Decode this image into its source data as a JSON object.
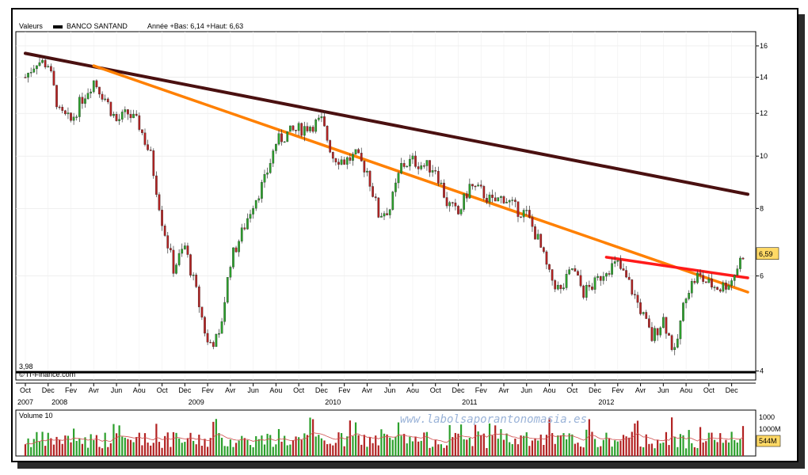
{
  "header": {
    "prefix": "Valeurs",
    "series_name": "BANCO SANTAND",
    "range_text": "Année +Bas: 6,14 +Haut: 6,63"
  },
  "price_axis": {
    "ticks": [
      4,
      6,
      8,
      10,
      12,
      14,
      16
    ],
    "last_price_label": "6,59",
    "min_label": "3,98"
  },
  "credit": "© IT-Finance.com",
  "watermark": "www.labolsaporantonomasia.es",
  "volume": {
    "title": "Volume 10",
    "tick_1000": "1000M",
    "tick_1000_short": "1000",
    "last_volume_label": "544M"
  },
  "colors": {
    "up": "#2ca02c",
    "down": "#b22222",
    "long_trend": "#4a1010",
    "mid_trend": "#ff8000",
    "short_trend": "#ff1a1a",
    "support": "#000000",
    "volume_avg": "#d05050",
    "label_box": "#ffd966"
  },
  "chart_data": {
    "type": "candlestick",
    "title": "BANCO SANTAND",
    "y_scale": "log",
    "ylim": [
      3.85,
      17.0
    ],
    "x_range": [
      "2007-10",
      "2013-01"
    ],
    "x_tick_labels": [
      "Oct",
      "Dec",
      "Fev",
      "Avr",
      "Jun",
      "Aou",
      "Oct",
      "Dec",
      "Fev",
      "Avr",
      "Jun",
      "Aou",
      "Oct",
      "Dec",
      "Fev",
      "Avr",
      "Jun",
      "Aou",
      "Oct",
      "Dec",
      "Fev",
      "Avr",
      "Jun",
      "Aou",
      "Oct",
      "Dec",
      "Fev",
      "Avr",
      "Jun",
      "Aou",
      "Oct",
      "Dec"
    ],
    "year_labels": [
      "2007",
      "2008",
      "2009",
      "2010",
      "2011",
      "2012"
    ],
    "close_series": [
      {
        "date": "2007-10",
        "close": 14.0
      },
      {
        "date": "2007-11",
        "close": 15.0
      },
      {
        "date": "2007-12",
        "close": 14.8
      },
      {
        "date": "2008-01",
        "close": 12.0
      },
      {
        "date": "2008-02",
        "close": 11.6
      },
      {
        "date": "2008-03",
        "close": 12.8
      },
      {
        "date": "2008-04",
        "close": 13.8
      },
      {
        "date": "2008-05",
        "close": 12.8
      },
      {
        "date": "2008-06",
        "close": 11.6
      },
      {
        "date": "2008-07",
        "close": 12.0
      },
      {
        "date": "2008-08",
        "close": 11.4
      },
      {
        "date": "2008-09",
        "close": 10.0
      },
      {
        "date": "2008-10",
        "close": 7.6
      },
      {
        "date": "2008-11",
        "close": 6.2
      },
      {
        "date": "2008-12",
        "close": 6.8
      },
      {
        "date": "2009-01",
        "close": 5.6
      },
      {
        "date": "2009-02",
        "close": 4.5
      },
      {
        "date": "2009-03",
        "close": 4.6
      },
      {
        "date": "2009-04",
        "close": 6.4
      },
      {
        "date": "2009-05",
        "close": 7.2
      },
      {
        "date": "2009-06",
        "close": 8.2
      },
      {
        "date": "2009-07",
        "close": 9.0
      },
      {
        "date": "2009-08",
        "close": 10.6
      },
      {
        "date": "2009-09",
        "close": 11.0
      },
      {
        "date": "2009-10",
        "close": 11.2
      },
      {
        "date": "2009-11",
        "close": 11.4
      },
      {
        "date": "2009-12",
        "close": 11.6
      },
      {
        "date": "2010-01",
        "close": 10.0
      },
      {
        "date": "2010-02",
        "close": 9.8
      },
      {
        "date": "2010-03",
        "close": 10.0
      },
      {
        "date": "2010-04",
        "close": 9.4
      },
      {
        "date": "2010-05",
        "close": 7.8
      },
      {
        "date": "2010-06",
        "close": 8.0
      },
      {
        "date": "2010-07",
        "close": 9.6
      },
      {
        "date": "2010-08",
        "close": 9.8
      },
      {
        "date": "2010-09",
        "close": 9.6
      },
      {
        "date": "2010-10",
        "close": 9.5
      },
      {
        "date": "2010-11",
        "close": 8.2
      },
      {
        "date": "2010-12",
        "close": 7.8
      },
      {
        "date": "2011-01",
        "close": 8.8
      },
      {
        "date": "2011-02",
        "close": 8.6
      },
      {
        "date": "2011-03",
        "close": 8.2
      },
      {
        "date": "2011-04",
        "close": 8.4
      },
      {
        "date": "2011-05",
        "close": 8.0
      },
      {
        "date": "2011-06",
        "close": 7.8
      },
      {
        "date": "2011-07",
        "close": 7.0
      },
      {
        "date": "2011-08",
        "close": 6.0
      },
      {
        "date": "2011-09",
        "close": 5.6
      },
      {
        "date": "2011-10",
        "close": 6.2
      },
      {
        "date": "2011-11",
        "close": 5.6
      },
      {
        "date": "2011-12",
        "close": 5.8
      },
      {
        "date": "2012-01",
        "close": 6.2
      },
      {
        "date": "2012-02",
        "close": 6.3
      },
      {
        "date": "2012-03",
        "close": 5.8
      },
      {
        "date": "2012-04",
        "close": 5.2
      },
      {
        "date": "2012-05",
        "close": 4.6
      },
      {
        "date": "2012-06",
        "close": 5.0
      },
      {
        "date": "2012-07",
        "close": 4.3
      },
      {
        "date": "2012-08",
        "close": 5.6
      },
      {
        "date": "2012-09",
        "close": 6.0
      },
      {
        "date": "2012-10",
        "close": 5.8
      },
      {
        "date": "2012-11",
        "close": 5.7
      },
      {
        "date": "2012-12",
        "close": 5.9
      },
      {
        "date": "2013-01",
        "close": 6.59
      }
    ],
    "trendlines": [
      {
        "name": "long",
        "from": {
          "date": "2007-10",
          "price": 15.5
        },
        "to": {
          "date": "2013-01",
          "price": 8.5
        }
      },
      {
        "name": "mid",
        "from": {
          "date": "2008-04",
          "price": 14.7
        },
        "to": {
          "date": "2013-01",
          "price": 5.6
        }
      },
      {
        "name": "short",
        "from": {
          "date": "2012-01",
          "price": 6.5
        },
        "to": {
          "date": "2013-01",
          "price": 5.95
        }
      },
      {
        "name": "support",
        "from": {
          "date": "2007-10",
          "price": 3.98
        },
        "to": {
          "date": "2013-01",
          "price": 3.98
        }
      }
    ],
    "volume_range": [
      0,
      1400
    ],
    "last_volume": 544
  }
}
